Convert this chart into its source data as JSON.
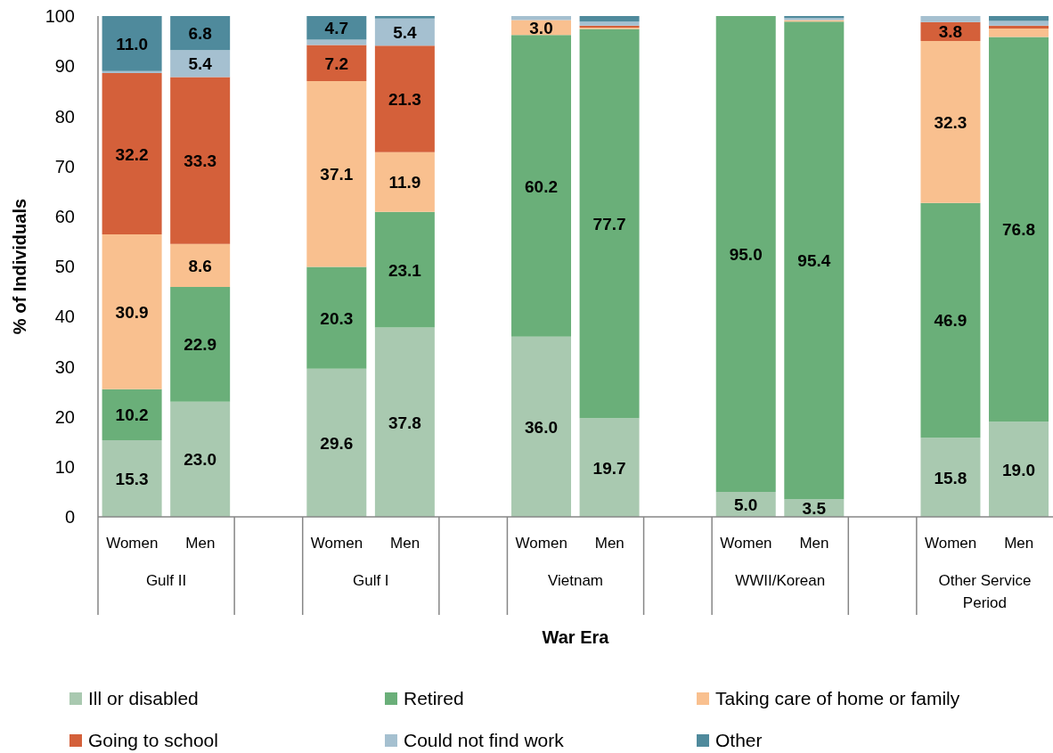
{
  "chart_data": {
    "type": "bar",
    "stacked": true,
    "xlabel": "War Era",
    "ylabel": "% of Individuals",
    "categories": [
      "Women",
      "Men",
      null,
      "Women",
      "Men",
      null,
      "Women",
      "Men",
      null,
      "Women",
      "Men",
      null,
      "Women",
      "Men"
    ],
    "annotations": [
      "Gulf II",
      "Gulf I",
      "Vietnam",
      "WWII/Korean",
      "Other Service Period"
    ],
    "ylim": [
      0,
      100
    ],
    "yticks": [
      0,
      10,
      20,
      30,
      40,
      50,
      60,
      70,
      80,
      90,
      100
    ],
    "grid": false,
    "legend": "bottom",
    "series": [
      {
        "name": "Ill or disabled",
        "color": "#a9c9b0",
        "values": [
          15.3,
          23.0,
          null,
          29.6,
          37.8,
          null,
          36.0,
          19.7,
          null,
          5.0,
          3.5,
          null,
          15.8,
          19.0
        ],
        "value_labels": [
          "15.3",
          "23.0",
          null,
          "29.6",
          "37.8",
          null,
          "36.0",
          "19.7",
          null,
          "5.0",
          "3.5",
          null,
          "15.8",
          "19.0"
        ]
      },
      {
        "name": "Retired",
        "color": "#6aaf79",
        "values": [
          10.2,
          22.9,
          null,
          20.3,
          23.1,
          null,
          60.2,
          77.7,
          null,
          95.0,
          95.4,
          null,
          46.9,
          76.8
        ],
        "value_labels": [
          "10.2",
          "22.9",
          null,
          "20.3",
          "23.1",
          null,
          "60.2",
          "77.7",
          null,
          "95.0",
          "95.4",
          null,
          "46.9",
          "76.8"
        ]
      },
      {
        "name": "Taking care of home or family",
        "color": "#f9c08f",
        "values": [
          30.9,
          8.6,
          null,
          37.1,
          11.9,
          null,
          3.0,
          0.3,
          null,
          0,
          0.3,
          null,
          32.3,
          1.7
        ],
        "value_labels": [
          "30.9",
          "8.6",
          null,
          "37.1",
          "11.9",
          null,
          "3.0",
          null,
          null,
          null,
          null,
          null,
          "32.3",
          null
        ]
      },
      {
        "name": "Going to school",
        "color": "#d4603a",
        "values": [
          32.2,
          33.3,
          null,
          7.2,
          21.3,
          null,
          0,
          0.4,
          null,
          0,
          0,
          null,
          3.8,
          0.6
        ],
        "value_labels": [
          "32.2",
          "33.3",
          null,
          "7.2",
          "21.3",
          null,
          null,
          null,
          null,
          null,
          null,
          null,
          "3.8",
          null
        ]
      },
      {
        "name": "Could not find work",
        "color": "#a5c0d0",
        "values": [
          0.4,
          5.4,
          null,
          1.1,
          5.4,
          null,
          0.8,
          0.8,
          null,
          0,
          0.4,
          null,
          1.2,
          0.9
        ],
        "value_labels": [
          null,
          "5.4",
          null,
          null,
          "5.4",
          null,
          null,
          null,
          null,
          null,
          null,
          null,
          null,
          null
        ]
      },
      {
        "name": "Other",
        "color": "#4f8a9c",
        "values": [
          11.0,
          6.8,
          null,
          4.7,
          0.5,
          null,
          0,
          1.1,
          null,
          0,
          0.4,
          null,
          0,
          1.0
        ],
        "value_labels": [
          "11.0",
          "6.8",
          null,
          "4.7",
          null,
          null,
          null,
          null,
          null,
          null,
          null,
          null,
          null,
          null
        ]
      }
    ]
  }
}
